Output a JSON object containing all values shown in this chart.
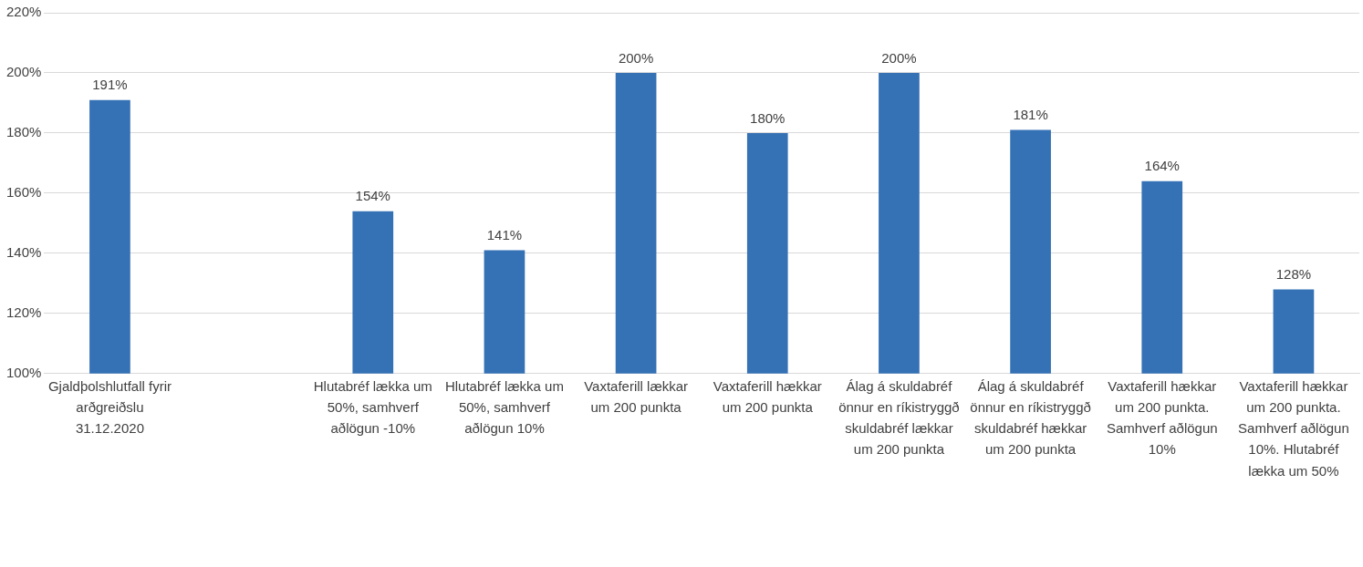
{
  "chart_data": {
    "type": "bar",
    "categories": [
      "Gjaldþolshlutfall fyrir arðgreiðslu 31.12.2020",
      null,
      "Hlutabréf lækka um 50%, samhverf aðlögun -10%",
      "Hlutabréf lækka um 50%, samhverf aðlögun 10%",
      "Vaxtaferill lækkar um 200 punkta",
      "Vaxtaferill hækkar um 200 punkta",
      "Álag á skuldabréf önnur en ríkistryggð skuldabréf lækkar um 200 punkta",
      "Álag á skuldabréf önnur en ríkistryggð skuldabréf hækkar um 200 punkta",
      "Vaxtaferill hækkar um 200 punkta. Samhverf aðlögun 10%",
      "Vaxtaferill hækkar um 200 punkta. Samhverf aðlögun 10%. Hlutabréf lækka um 50%"
    ],
    "values": [
      191,
      null,
      154,
      141,
      200,
      180,
      200,
      181,
      164,
      128
    ],
    "value_labels": [
      "191%",
      null,
      "154%",
      "141%",
      "200%",
      "180%",
      "200%",
      "181%",
      "164%",
      "128%"
    ],
    "color": "#3571b5",
    "ylim": [
      100,
      220
    ],
    "yticks": [
      {
        "value": 100,
        "label": "100%"
      },
      {
        "value": 120,
        "label": "120%"
      },
      {
        "value": 140,
        "label": "140%"
      },
      {
        "value": 160,
        "label": "160%"
      },
      {
        "value": 180,
        "label": "180%"
      },
      {
        "value": 200,
        "label": "200%"
      },
      {
        "value": 220,
        "label": "220%"
      }
    ],
    "grid": "y",
    "legend": false
  }
}
